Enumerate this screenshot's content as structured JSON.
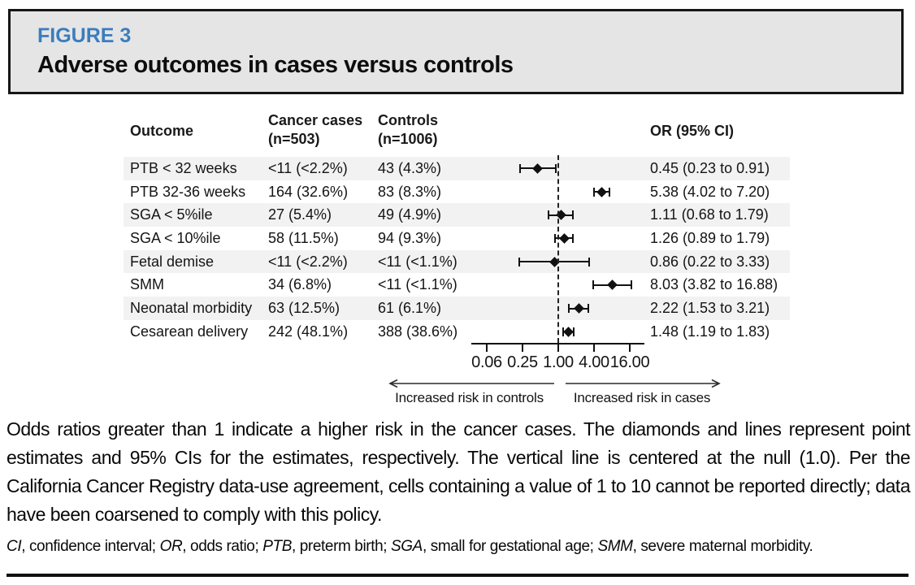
{
  "figure": {
    "label": "FIGURE 3",
    "title": "Adverse outcomes in cases versus controls",
    "accent_color": "#3b7dbd"
  },
  "table": {
    "headers": {
      "outcome": "Outcome",
      "cases_line1": "Cancer cases",
      "cases_line2": "(n=503)",
      "controls_line1": "Controls",
      "controls_line2": "(n=1006)",
      "or": "OR (95% CI)"
    }
  },
  "chart_data": {
    "type": "forest",
    "x_scale": "log",
    "null_value": 1.0,
    "x_range": [
      0.0625,
      16
    ],
    "ticks": [
      {
        "label": "0.06",
        "value": 0.0625
      },
      {
        "label": "0.25",
        "value": 0.25
      },
      {
        "label": "1.00",
        "value": 1
      },
      {
        "label": "4.00",
        "value": 4
      },
      {
        "label": "16.00",
        "value": 16
      }
    ],
    "rows": [
      {
        "outcome": "PTB < 32 weeks",
        "cases": "<11 (<2.2%)",
        "controls": "43 (4.3%)",
        "or": 0.45,
        "ci_low": 0.23,
        "ci_high": 0.91,
        "or_label": "0.45 (0.23 to 0.91)"
      },
      {
        "outcome": "PTB 32-36 weeks",
        "cases": "164 (32.6%)",
        "controls": "83 (8.3%)",
        "or": 5.38,
        "ci_low": 4.02,
        "ci_high": 7.2,
        "or_label": "5.38 (4.02 to 7.20)"
      },
      {
        "outcome": "SGA < 5%ile",
        "cases": "27 (5.4%)",
        "controls": "49 (4.9%)",
        "or": 1.11,
        "ci_low": 0.68,
        "ci_high": 1.79,
        "or_label": "1.11 (0.68 to 1.79)"
      },
      {
        "outcome": "SGA < 10%ile",
        "cases": "58 (11.5%)",
        "controls": "94 (9.3%)",
        "or": 1.26,
        "ci_low": 0.89,
        "ci_high": 1.79,
        "or_label": "1.26 (0.89 to 1.79)"
      },
      {
        "outcome": "Fetal demise",
        "cases": "<11 (<2.2%)",
        "controls": "<11 (<1.1%)",
        "or": 0.86,
        "ci_low": 0.22,
        "ci_high": 3.33,
        "or_label": "0.86 (0.22 to 3.33)"
      },
      {
        "outcome": "SMM",
        "cases": "34 (6.8%)",
        "controls": "<11 (<1.1%)",
        "or": 8.03,
        "ci_low": 3.82,
        "ci_high": 16.88,
        "or_label": "8.03 (3.82 to 16.88)"
      },
      {
        "outcome": "Neonatal morbidity",
        "cases": "63 (12.5%)",
        "controls": "61 (6.1%)",
        "or": 2.22,
        "ci_low": 1.53,
        "ci_high": 3.21,
        "or_label": "2.22 (1.53 to 3.21)"
      },
      {
        "outcome": "Cesarean delivery",
        "cases": "242 (48.1%)",
        "controls": "388 (38.6%)",
        "or": 1.48,
        "ci_low": 1.19,
        "ci_high": 1.83,
        "or_label": "1.48 (1.19 to 1.83)"
      }
    ],
    "direction_labels": {
      "left": "Increased risk in controls",
      "right": "Increased risk in cases"
    }
  },
  "caption": "Odds ratios greater than 1 indicate a higher risk in the cancer cases. The diamonds and lines represent point estimates and 95% CIs for the estimates, respectively. The vertical line is centered at the null (1.0). Per the California Cancer Registry data-use agreement, cells containing a value of 1 to 10 cannot be reported directly; data have been coarsened to comply with this policy.",
  "footnote_segments": [
    {
      "text": "CI",
      "italic": true
    },
    {
      "text": ", confidence interval; ",
      "italic": false
    },
    {
      "text": "OR",
      "italic": true
    },
    {
      "text": ", odds ratio; ",
      "italic": false
    },
    {
      "text": "PTB",
      "italic": true
    },
    {
      "text": ", preterm birth; ",
      "italic": false
    },
    {
      "text": "SGA",
      "italic": true
    },
    {
      "text": ", small for gestational age; ",
      "italic": false
    },
    {
      "text": "SMM",
      "italic": true
    },
    {
      "text": ", severe maternal morbidity.",
      "italic": false
    }
  ]
}
